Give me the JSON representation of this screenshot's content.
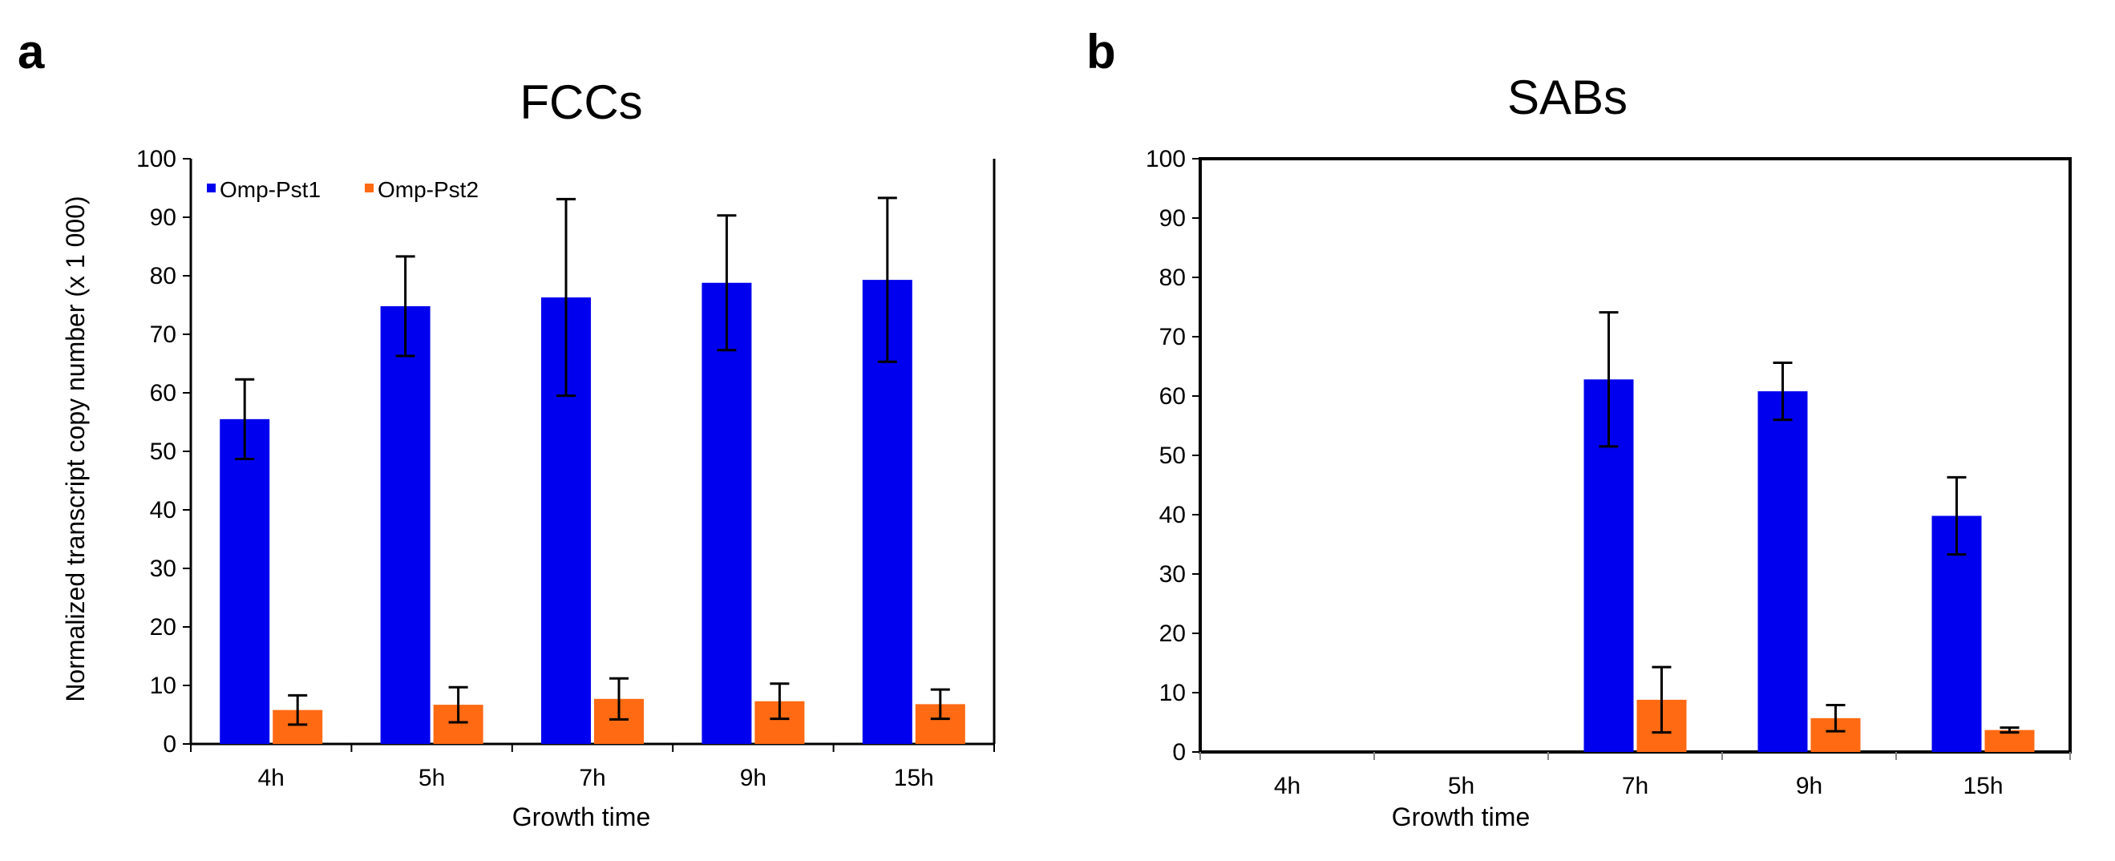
{
  "colors": {
    "series1": "#0000ee",
    "series2": "#ff6a13",
    "axis": "#000000",
    "error": "#000000"
  },
  "chart_data": [
    {
      "type": "bar",
      "panel_label": "a",
      "title": "FCCs",
      "xlabel": "Growth time",
      "ylabel": "Normalized transcript copy number (x 1 000)",
      "ylim": [
        0,
        100
      ],
      "yticks": [
        0,
        10,
        20,
        30,
        40,
        50,
        60,
        70,
        80,
        90,
        100
      ],
      "categories": [
        "4h",
        "5h",
        "7h",
        "9h",
        "15h"
      ],
      "legend": [
        "Omp-Pst1",
        "Omp-Pst2"
      ],
      "series": [
        {
          "name": "Omp-Pst1",
          "values": [
            55.5,
            74.8,
            76.3,
            78.8,
            79.3
          ],
          "errors": [
            6.8,
            8.5,
            16.8,
            11.5,
            14.0
          ]
        },
        {
          "name": "Omp-Pst2",
          "values": [
            5.8,
            6.7,
            7.7,
            7.3,
            6.8
          ],
          "errors": [
            2.5,
            3.0,
            3.5,
            3.0,
            2.5
          ]
        }
      ]
    },
    {
      "type": "bar",
      "panel_label": "b",
      "title": "SABs",
      "xlabel": "Growth time",
      "ylabel": "",
      "ylim": [
        0,
        100
      ],
      "yticks": [
        0,
        10,
        20,
        30,
        40,
        50,
        60,
        70,
        80,
        90,
        100
      ],
      "categories": [
        "4h",
        "5h",
        "7h",
        "9h",
        "15h"
      ],
      "series": [
        {
          "name": "Omp-Pst1",
          "values": [
            0,
            0,
            62.8,
            60.8,
            39.8
          ],
          "errors": [
            0,
            0,
            11.3,
            4.8,
            6.5
          ]
        },
        {
          "name": "Omp-Pst2",
          "values": [
            0,
            0,
            8.8,
            5.7,
            3.7
          ],
          "errors": [
            0,
            0,
            5.5,
            2.2,
            0.4
          ]
        }
      ]
    }
  ]
}
